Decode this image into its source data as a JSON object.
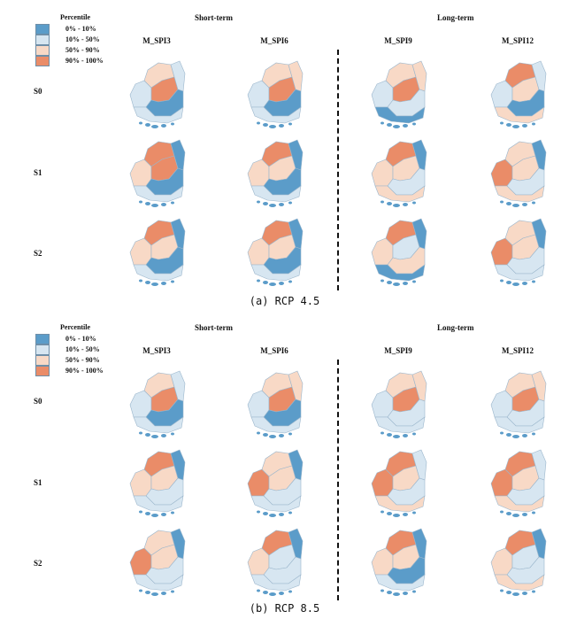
{
  "legend": {
    "title": "Percentile",
    "items": [
      {
        "label": "0% - 10%",
        "color": "#5b9cc9"
      },
      {
        "label": "10% - 50%",
        "color": "#d7e6f1"
      },
      {
        "label": "50% - 90%",
        "color": "#f8d9c6"
      },
      {
        "label": "90% - 100%",
        "color": "#ea8c68"
      }
    ]
  },
  "panels": [
    {
      "id": "a",
      "caption": "(a) RCP 4.5",
      "group_titles": [
        "Short-term",
        "Long-term"
      ],
      "columns": [
        "M_SPI3",
        "M_SPI6",
        "M_SPI9",
        "M_SPI12"
      ],
      "rows": [
        "S0",
        "S1",
        "S2"
      ]
    },
    {
      "id": "b",
      "caption": "(b) RCP 8.5",
      "group_titles": [
        "Short-term",
        "Long-term"
      ],
      "columns": [
        "M_SPI3",
        "M_SPI6",
        "M_SPI9",
        "M_SPI12"
      ],
      "rows": [
        "S0",
        "S1",
        "S2"
      ]
    }
  ]
}
